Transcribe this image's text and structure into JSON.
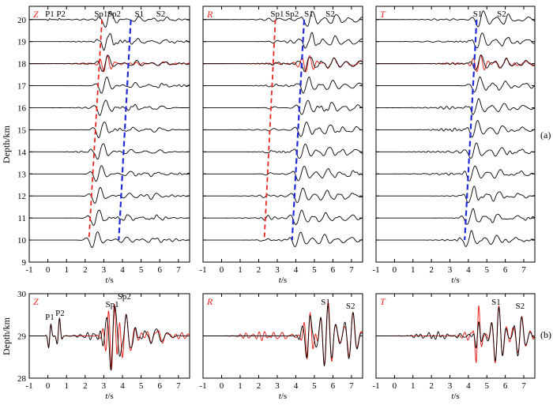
{
  "figure_labels": {
    "a": "(a)",
    "b": "(b)"
  },
  "y_axis_label": "Depth/km",
  "x_axis_label_italic": "t",
  "x_axis_label_unit": "/s",
  "colors": {
    "black_trace": "#000000",
    "red_trace": "#e8261f",
    "red_dash": "#e8261f",
    "blue_dash": "#1f2ad6",
    "panel_label": "#e8261f"
  },
  "chart_data": [
    {
      "type": "line",
      "component": "Z",
      "row": "a",
      "xlim": [
        -1,
        7.6
      ],
      "ylim": [
        9,
        20.6
      ],
      "x_ticks": [
        "-1",
        "0",
        "1",
        "2",
        "3",
        "4",
        "5",
        "6",
        "7"
      ],
      "y_ticks": [
        "9",
        "10",
        "11",
        "12",
        "13",
        "14",
        "15",
        "16",
        "17",
        "18",
        "19",
        "20"
      ],
      "depths_km": [
        20,
        19,
        18,
        17,
        16,
        15,
        14,
        13,
        12,
        11,
        10
      ],
      "red_overlay_depth_km": 18,
      "phase_labels": [
        {
          "text": "P1",
          "t": 0.1
        },
        {
          "text": "P2",
          "t": 0.7
        },
        {
          "text": "Sp1",
          "t": 2.85
        },
        {
          "text": "Sp2",
          "t": 3.55
        },
        {
          "text": "S1",
          "t": 4.9
        },
        {
          "text": "S2",
          "t": 6.05
        }
      ],
      "red_dash_line": {
        "t_at_20km": 2.9,
        "t_at_10km": 2.2
      },
      "blue_dash_line": {
        "t_at_20km": 4.45,
        "t_at_10km": 3.8
      }
    },
    {
      "type": "line",
      "component": "R",
      "row": "a",
      "xlim": [
        -1,
        7.6
      ],
      "ylim": [
        9,
        20.6
      ],
      "x_ticks": [
        "-1",
        "0",
        "1",
        "2",
        "3",
        "4",
        "5",
        "6",
        "7"
      ],
      "depths_km": [
        20,
        19,
        18,
        17,
        16,
        15,
        14,
        13,
        12,
        11,
        10
      ],
      "red_overlay_depth_km": 18,
      "phase_labels": [
        {
          "text": "Sp1",
          "t": 3.0
        },
        {
          "text": "Sp2",
          "t": 3.8
        },
        {
          "text": "S1",
          "t": 4.7
        },
        {
          "text": "S2",
          "t": 5.85
        }
      ],
      "red_dash_line": {
        "t_at_20km": 2.9,
        "t_at_10km": 2.3
      },
      "blue_dash_line": {
        "t_at_20km": 4.45,
        "t_at_10km": 3.8
      }
    },
    {
      "type": "line",
      "component": "T",
      "row": "a",
      "xlim": [
        -1,
        7.6
      ],
      "ylim": [
        9,
        20.6
      ],
      "x_ticks": [
        "-1",
        "0",
        "1",
        "2",
        "3",
        "4",
        "5",
        "6",
        "7"
      ],
      "depths_km": [
        20,
        19,
        18,
        17,
        16,
        15,
        14,
        13,
        12,
        11,
        10
      ],
      "red_overlay_depth_km": 18,
      "phase_labels": [
        {
          "text": "S1",
          "t": 4.5
        },
        {
          "text": "S2",
          "t": 5.8
        }
      ],
      "blue_dash_line": {
        "t_at_20km": 4.45,
        "t_at_10km": 3.8
      }
    },
    {
      "type": "line",
      "component": "Z",
      "row": "b",
      "xlim": [
        -1,
        7.6
      ],
      "ylim": [
        28,
        30
      ],
      "x_ticks": [
        "-1",
        "0",
        "1",
        "2",
        "3",
        "4",
        "5",
        "6",
        "7"
      ],
      "y_ticks": [
        "28",
        "29",
        "30"
      ],
      "depths_km": [
        29
      ],
      "phase_labels": [
        {
          "text": "P1",
          "t": 0.1
        },
        {
          "text": "P2",
          "t": 0.65
        },
        {
          "text": "Sp1",
          "t": 3.45
        },
        {
          "text": "Sp2",
          "t": 4.1
        }
      ]
    },
    {
      "type": "line",
      "component": "R",
      "row": "b",
      "xlim": [
        -1,
        7.6
      ],
      "ylim": [
        28,
        30
      ],
      "x_ticks": [
        "-1",
        "0",
        "1",
        "2",
        "3",
        "4",
        "5",
        "6",
        "7"
      ],
      "depths_km": [
        29
      ],
      "phase_labels": [
        {
          "text": "S1",
          "t": 5.6
        },
        {
          "text": "S2",
          "t": 6.95
        }
      ]
    },
    {
      "type": "line",
      "component": "T",
      "row": "b",
      "xlim": [
        -1,
        7.6
      ],
      "ylim": [
        28,
        30
      ],
      "x_ticks": [
        "-1",
        "0",
        "1",
        "2",
        "3",
        "4",
        "5",
        "6",
        "7"
      ],
      "depths_km": [
        29
      ],
      "phase_labels": [
        {
          "text": "S1",
          "t": 5.5
        },
        {
          "text": "S2",
          "t": 6.8
        }
      ]
    }
  ]
}
